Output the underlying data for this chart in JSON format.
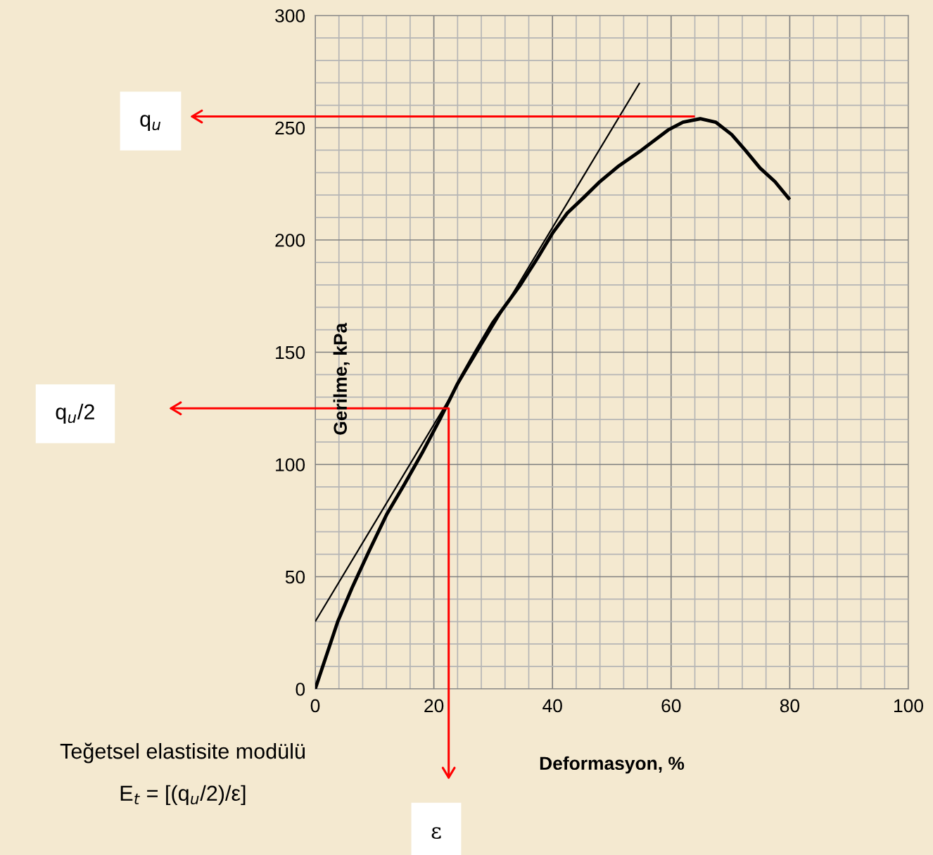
{
  "chart_data": {
    "type": "line",
    "xlabel": "Deformasyon, %",
    "ylabel": "Gerilme, kPa",
    "xlim": [
      0,
      100
    ],
    "xticks": [
      0,
      20,
      40,
      60,
      80,
      100
    ],
    "ylim": [
      0,
      300
    ],
    "yticks": [
      0,
      50,
      100,
      150,
      200,
      250,
      300
    ],
    "grid": true,
    "series": [
      {
        "color": "#000000",
        "x": [
          0,
          3.8,
          6.2,
          9,
          12.1,
          15,
          18,
          21,
          24,
          27,
          29.9,
          34.6,
          37.5,
          40,
          42.5,
          45.3,
          48,
          51.2,
          55,
          59.5,
          62,
          64.9,
          67.5,
          70.2,
          72.5,
          75,
          77.5,
          80
        ],
        "values": [
          0,
          30,
          45,
          61,
          78,
          91,
          105,
          120,
          136,
          150,
          163,
          180,
          192,
          203,
          212,
          219,
          226,
          233,
          240,
          249,
          252.5,
          254,
          252.5,
          247,
          240,
          232,
          226,
          218
        ]
      },
      {
        "color": "#000000",
        "x": [
          0,
          54.7
        ],
        "values": [
          30,
          270
        ]
      },
      {
        "color": "#ff0000",
        "x": [
          64,
          0
        ],
        "values": [
          255,
          255
        ]
      },
      {
        "color": "#ff0000",
        "x": [
          0,
          22.5,
          22.5
        ],
        "values": [
          125,
          125,
          0
        ]
      }
    ],
    "annotations": [
      "q$_{u}$",
      "q$_{u}$/2",
      "ε",
      "Teğetsel elastisite modülü",
      "E$_{t}$ = [(q$_{u}$/2)/ε]"
    ]
  }
}
